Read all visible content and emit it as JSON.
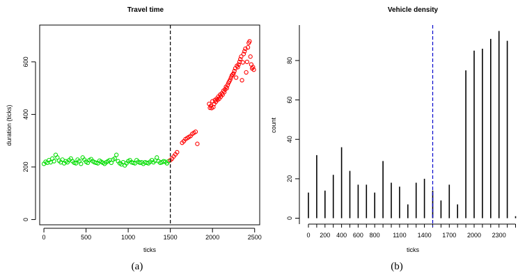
{
  "chart_data": [
    {
      "type": "scatter",
      "title": "Travel time",
      "xlabel": "ticks",
      "ylabel": "duration (ticks)",
      "caption": "(a)",
      "xlim": [
        -50,
        2560
      ],
      "ylim": [
        -20,
        740
      ],
      "xticks": [
        0,
        500,
        1000,
        1500,
        2000,
        2500
      ],
      "yticks": [
        0,
        200,
        400,
        600
      ],
      "vline": {
        "x": 1500,
        "color": "#000000",
        "style": "dashed"
      },
      "grid": false,
      "series": [
        {
          "color": "#00dd00",
          "points": [
            [
              0,
              212
            ],
            [
              20,
              220
            ],
            [
              40,
              216
            ],
            [
              60,
              226
            ],
            [
              80,
              218
            ],
            [
              100,
              232
            ],
            [
              120,
              222
            ],
            [
              140,
              246
            ],
            [
              160,
              236
            ],
            [
              180,
              224
            ],
            [
              200,
              218
            ],
            [
              220,
              228
            ],
            [
              240,
              214
            ],
            [
              260,
              222
            ],
            [
              280,
              218
            ],
            [
              300,
              226
            ],
            [
              320,
              232
            ],
            [
              340,
              222
            ],
            [
              360,
              216
            ],
            [
              380,
              214
            ],
            [
              400,
              228
            ],
            [
              420,
              222
            ],
            [
              440,
              212
            ],
            [
              460,
              236
            ],
            [
              480,
              228
            ],
            [
              500,
              220
            ],
            [
              520,
              216
            ],
            [
              540,
              226
            ],
            [
              560,
              230
            ],
            [
              580,
              222
            ],
            [
              600,
              218
            ],
            [
              620,
              216
            ],
            [
              640,
              214
            ],
            [
              660,
              224
            ],
            [
              680,
              220
            ],
            [
              700,
              216
            ],
            [
              720,
              212
            ],
            [
              740,
              218
            ],
            [
              760,
              222
            ],
            [
              780,
              226
            ],
            [
              800,
              216
            ],
            [
              820,
              228
            ],
            [
              840,
              232
            ],
            [
              860,
              246
            ],
            [
              880,
              222
            ],
            [
              900,
              214
            ],
            [
              920,
              210
            ],
            [
              940,
              218
            ],
            [
              960,
              206
            ],
            [
              980,
              214
            ],
            [
              1000,
              222
            ],
            [
              1020,
              226
            ],
            [
              1040,
              218
            ],
            [
              1060,
              216
            ],
            [
              1080,
              214
            ],
            [
              1100,
              226
            ],
            [
              1120,
              220
            ],
            [
              1140,
              216
            ],
            [
              1160,
              218
            ],
            [
              1180,
              212
            ],
            [
              1200,
              218
            ],
            [
              1220,
              216
            ],
            [
              1240,
              214
            ],
            [
              1260,
              220
            ],
            [
              1280,
              226
            ],
            [
              1300,
              218
            ],
            [
              1320,
              224
            ],
            [
              1340,
              236
            ],
            [
              1360,
              222
            ],
            [
              1380,
              216
            ],
            [
              1400,
              218
            ],
            [
              1420,
              222
            ],
            [
              1440,
              220
            ],
            [
              1460,
              214
            ],
            [
              1480,
              222
            ]
          ]
        },
        {
          "color": "#ff0000",
          "points": [
            [
              1500,
              226
            ],
            [
              1520,
              232
            ],
            [
              1540,
              240
            ],
            [
              1560,
              248
            ],
            [
              1580,
              256
            ],
            [
              1640,
              292
            ],
            [
              1660,
              298
            ],
            [
              1680,
              306
            ],
            [
              1700,
              310
            ],
            [
              1720,
              314
            ],
            [
              1740,
              318
            ],
            [
              1760,
              326
            ],
            [
              1780,
              330
            ],
            [
              1800,
              334
            ],
            [
              1820,
              288
            ],
            [
              1960,
              440
            ],
            [
              1970,
              425
            ],
            [
              1980,
              432
            ],
            [
              1990,
              424
            ],
            [
              2000,
              450
            ],
            [
              2010,
              428
            ],
            [
              2020,
              440
            ],
            [
              2030,
              455
            ],
            [
              2040,
              448
            ],
            [
              2050,
              460
            ],
            [
              2060,
              455
            ],
            [
              2070,
              468
            ],
            [
              2080,
              460
            ],
            [
              2090,
              475
            ],
            [
              2100,
              468
            ],
            [
              2110,
              480
            ],
            [
              2120,
              475
            ],
            [
              2130,
              490
            ],
            [
              2140,
              485
            ],
            [
              2150,
              495
            ],
            [
              2160,
              505
            ],
            [
              2170,
              500
            ],
            [
              2180,
              512
            ],
            [
              2190,
              520
            ],
            [
              2200,
              526
            ],
            [
              2210,
              532
            ],
            [
              2220,
              540
            ],
            [
              2230,
              548
            ],
            [
              2240,
              552
            ],
            [
              2250,
              556
            ],
            [
              2260,
              565
            ],
            [
              2270,
              575
            ],
            [
              2280,
              540
            ],
            [
              2290,
              585
            ],
            [
              2300,
              580
            ],
            [
              2310,
              590
            ],
            [
              2320,
              600
            ],
            [
              2330,
              610
            ],
            [
              2340,
              620
            ],
            [
              2350,
              530
            ],
            [
              2360,
              598
            ],
            [
              2370,
              630
            ],
            [
              2380,
              640
            ],
            [
              2390,
              650
            ],
            [
              2400,
              560
            ],
            [
              2410,
              600
            ],
            [
              2420,
              655
            ],
            [
              2430,
              672
            ],
            [
              2440,
              678
            ],
            [
              2450,
              620
            ],
            [
              2460,
              590
            ],
            [
              2470,
              575
            ],
            [
              2480,
              580
            ],
            [
              2490,
              570
            ]
          ]
        }
      ]
    },
    {
      "type": "bar",
      "title": "Vehicle density",
      "xlabel": "ticks",
      "ylabel": "count",
      "caption": "(b)",
      "ylim": [
        -3,
        98
      ],
      "yticks": [
        0,
        20,
        40,
        60,
        80
      ],
      "xtick_labels": [
        "0",
        "200",
        "400",
        "600",
        "800",
        "1100",
        "1400",
        "1700",
        "2000",
        "2300"
      ],
      "xtick_values": [
        0,
        200,
        400,
        600,
        800,
        1100,
        1400,
        1700,
        2000,
        2300
      ],
      "vline": {
        "x": 1500,
        "color": "#0000cc",
        "style": "dashed"
      },
      "grid": false,
      "x": [
        0,
        100,
        200,
        300,
        400,
        500,
        600,
        700,
        800,
        900,
        1000,
        1100,
        1200,
        1300,
        1400,
        1500,
        1600,
        1700,
        1800,
        1900,
        2000,
        2100,
        2200,
        2300,
        2400,
        2500
      ],
      "values": [
        13,
        32,
        14,
        22,
        36,
        24,
        17,
        17,
        13,
        29,
        18,
        16,
        7,
        18,
        20,
        14,
        9,
        17,
        7,
        75,
        85,
        86,
        91,
        95,
        90,
        1
      ]
    }
  ]
}
